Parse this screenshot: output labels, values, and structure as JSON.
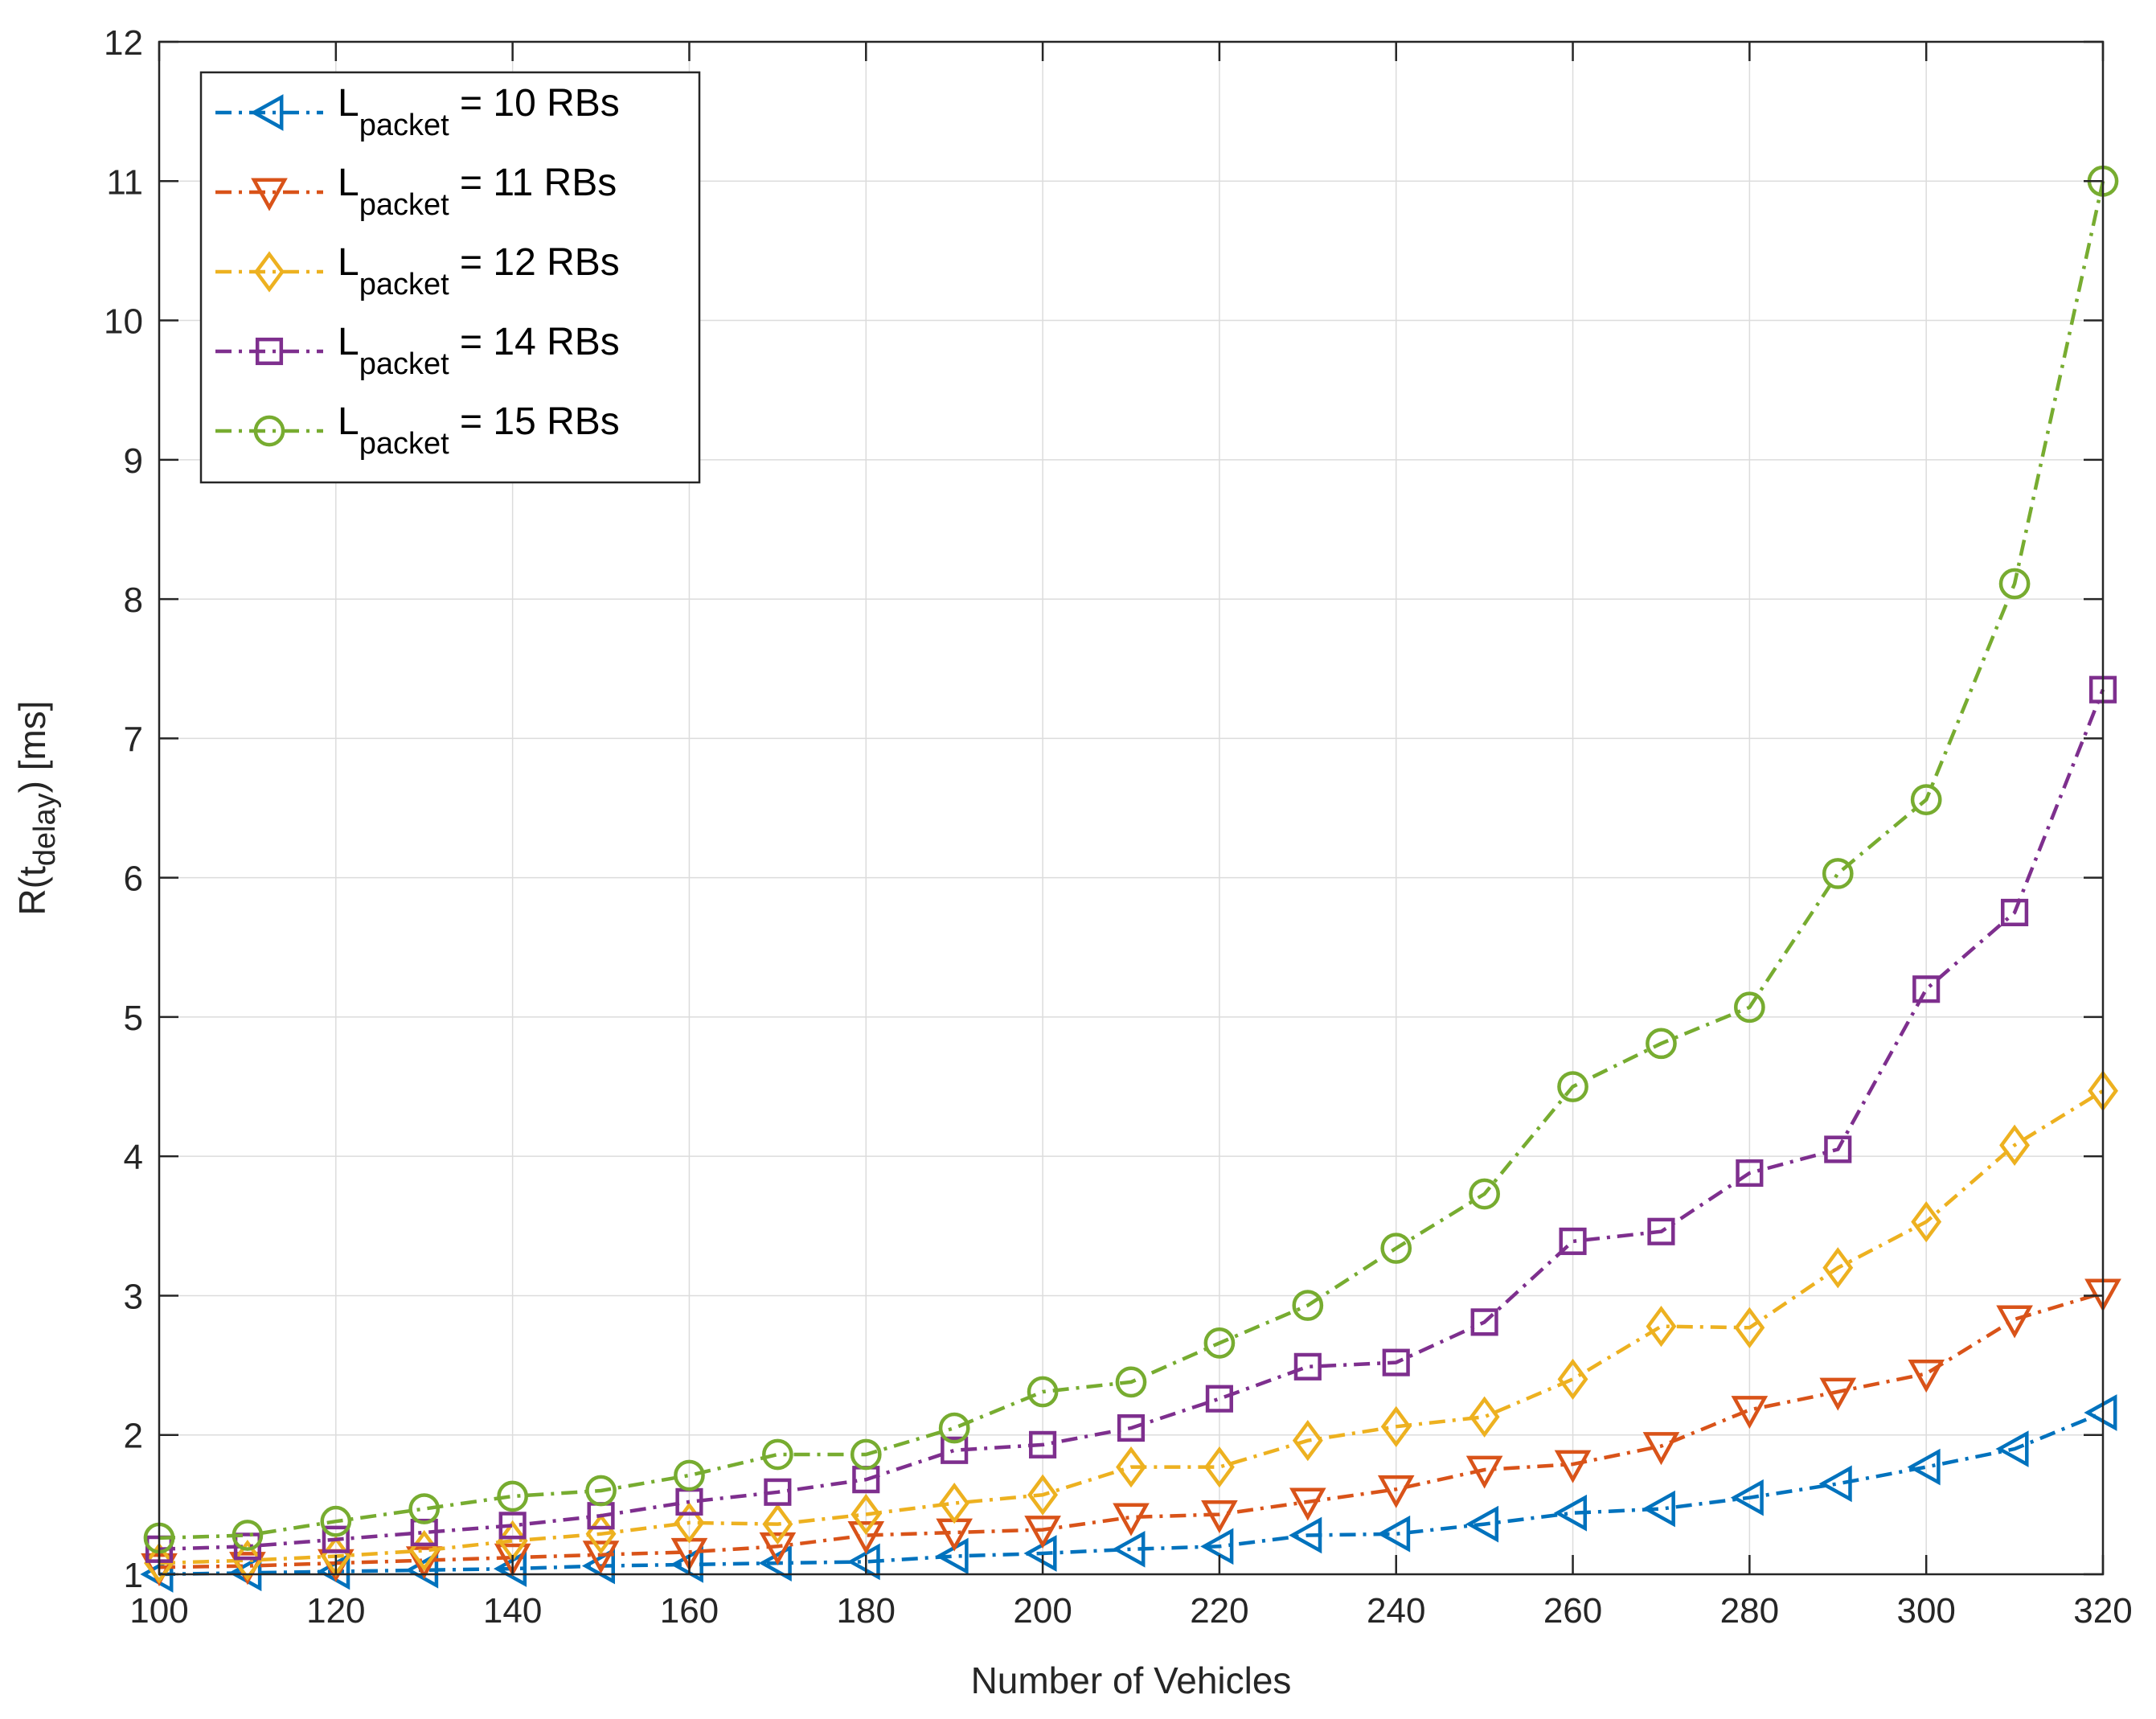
{
  "chart_data": {
    "type": "line",
    "title": "",
    "xlabel": "Number of Vehicles",
    "ylabel": {
      "main": "R(t",
      "sub": "delay",
      "tail": ") [ms]"
    },
    "xlim": [
      100,
      320
    ],
    "ylim": [
      1,
      12
    ],
    "xticks": [
      100,
      120,
      140,
      160,
      180,
      200,
      220,
      240,
      260,
      280,
      300,
      320
    ],
    "yticks": [
      1,
      2,
      3,
      4,
      5,
      6,
      7,
      8,
      9,
      10,
      11,
      12
    ],
    "grid": true,
    "legend_location": "top-left",
    "x": [
      100,
      110,
      120,
      130,
      140,
      150,
      160,
      170,
      180,
      190,
      200,
      210,
      220,
      230,
      240,
      250,
      260,
      270,
      280,
      290,
      300,
      310,
      320
    ],
    "series": [
      {
        "name": "L_packet = 10 RBs",
        "legend_main": "L",
        "legend_sub": "packet",
        "legend_tail": " = 10 RBs",
        "color": "#0072BD",
        "marker": "triangle-left",
        "values": [
          1.0,
          1.01,
          1.02,
          1.03,
          1.04,
          1.06,
          1.07,
          1.08,
          1.09,
          1.13,
          1.15,
          1.18,
          1.2,
          1.28,
          1.29,
          1.36,
          1.44,
          1.47,
          1.55,
          1.65,
          1.77,
          1.9,
          2.16
        ]
      },
      {
        "name": "L_packet = 11 RBs",
        "legend_main": "L",
        "legend_sub": "packet",
        "legend_tail": " = 11 RBs",
        "color": "#D95319",
        "marker": "triangle-down",
        "values": [
          1.05,
          1.06,
          1.08,
          1.1,
          1.12,
          1.14,
          1.16,
          1.2,
          1.28,
          1.3,
          1.32,
          1.41,
          1.43,
          1.52,
          1.61,
          1.75,
          1.79,
          1.92,
          2.18,
          2.31,
          2.44,
          2.83,
          3.02
        ]
      },
      {
        "name": "L_packet = 12 RBs",
        "legend_main": "L",
        "legend_sub": "packet",
        "legend_tail": " = 12 RBs",
        "color": "#EDB120",
        "marker": "diamond",
        "values": [
          1.08,
          1.1,
          1.13,
          1.17,
          1.24,
          1.29,
          1.37,
          1.36,
          1.43,
          1.51,
          1.57,
          1.77,
          1.77,
          1.96,
          2.06,
          2.13,
          2.4,
          2.78,
          2.77,
          3.2,
          3.53,
          4.08,
          4.47
        ]
      },
      {
        "name": "L_packet = 14 RBs",
        "legend_main": "L",
        "legend_sub": "packet",
        "legend_tail": " = 14 RBs",
        "color": "#7E2F8E",
        "marker": "square",
        "values": [
          1.18,
          1.2,
          1.25,
          1.3,
          1.35,
          1.42,
          1.52,
          1.59,
          1.68,
          1.89,
          1.93,
          2.05,
          2.26,
          2.49,
          2.52,
          2.81,
          3.39,
          3.46,
          3.88,
          4.05,
          5.2,
          5.75,
          7.35
        ]
      },
      {
        "name": "L_packet = 15 RBs",
        "legend_main": "L",
        "legend_sub": "packet",
        "legend_tail": " = 15 RBs",
        "color": "#77AC30",
        "marker": "circle",
        "values": [
          1.26,
          1.28,
          1.38,
          1.47,
          1.56,
          1.6,
          1.71,
          1.86,
          1.86,
          2.05,
          2.31,
          2.38,
          2.66,
          2.93,
          3.34,
          3.73,
          4.5,
          4.81,
          5.07,
          6.03,
          6.56,
          8.11,
          11.0
        ]
      }
    ]
  }
}
